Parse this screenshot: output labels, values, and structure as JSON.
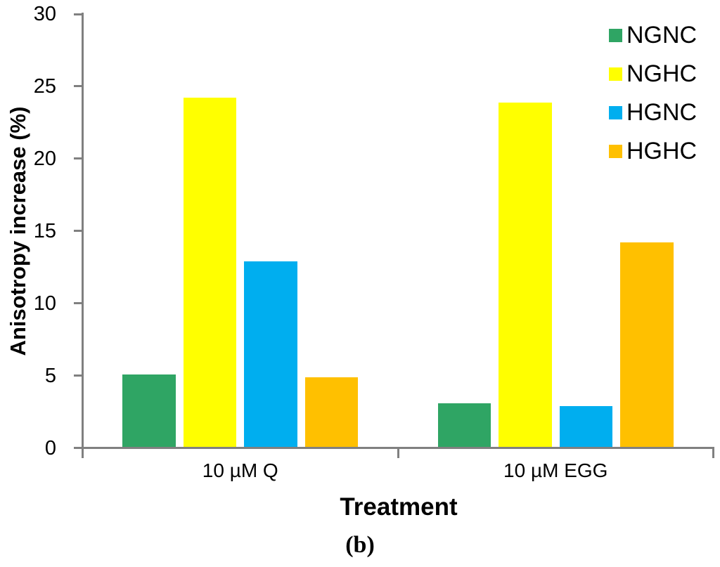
{
  "figure": {
    "caption": "(b)"
  },
  "chart_data": {
    "type": "bar",
    "title": "",
    "xlabel": "Treatment",
    "ylabel": "Anisotropy increase (%)",
    "ylim": [
      0,
      30
    ],
    "yticks": [
      0,
      5,
      10,
      15,
      20,
      25,
      30
    ],
    "grid": false,
    "legend_position": "top-right",
    "axis_color": "#808080",
    "categories": [
      "10 µM Q",
      "10 µM EGG"
    ],
    "series": [
      {
        "name": "NGNC",
        "color": "#2FA564",
        "values": [
          5.1,
          3.1
        ]
      },
      {
        "name": "NGHC",
        "color": "#FFFF00",
        "values": [
          24.2,
          23.9
        ]
      },
      {
        "name": "HGNC",
        "color": "#00AEEF",
        "values": [
          12.9,
          2.9
        ]
      },
      {
        "name": "HGHC",
        "color": "#FFC000",
        "values": [
          4.9,
          14.2
        ]
      }
    ],
    "caption": "(b)"
  }
}
